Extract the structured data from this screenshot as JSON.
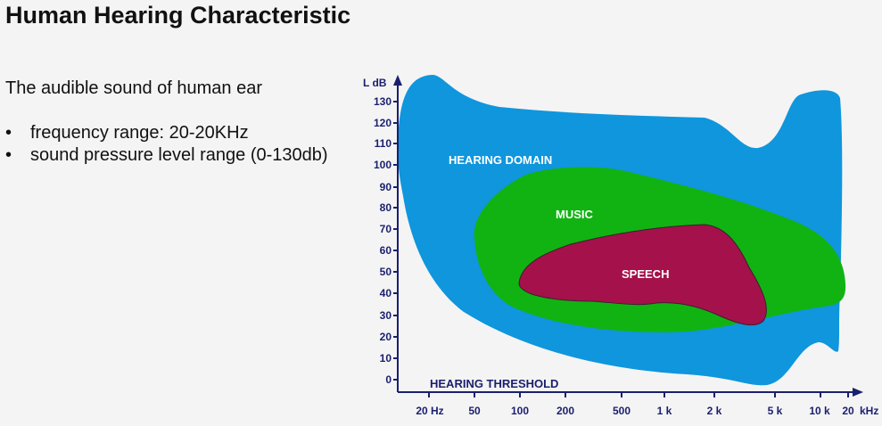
{
  "slide": {
    "title": "Human Hearing Characteristic",
    "intro": "The audible sound of human ear",
    "bullets": [
      "frequency range:  20-20KHz",
      "sound pressure level range (0-130db)"
    ],
    "bullet_symbol": "•"
  },
  "diagram": {
    "y_axis_label": "L dB",
    "x_axis_unit": "kHz",
    "y_ticks": [
      "0",
      "10",
      "20",
      "30",
      "40",
      "50",
      "60",
      "70",
      "80",
      "90",
      "100",
      "110",
      "120",
      "130"
    ],
    "x_ticks": [
      "20 Hz",
      "50",
      "100",
      "200",
      "500",
      "1 k",
      "2 k",
      "5 k",
      "10 k",
      "20"
    ],
    "regions": {
      "hearing_domain": {
        "label": "HEARING DOMAIN",
        "color": "#0f96dd",
        "label_color": "#ffffff"
      },
      "music": {
        "label": "MUSIC",
        "color": "#11b312",
        "label_color": "#ffffff"
      },
      "speech": {
        "label": "SPEECH",
        "color": "#a5114a",
        "label_color": "#ffffff"
      }
    },
    "threshold_label": "HEARING THRESHOLD",
    "axis_color": "#1a1f6e"
  }
}
